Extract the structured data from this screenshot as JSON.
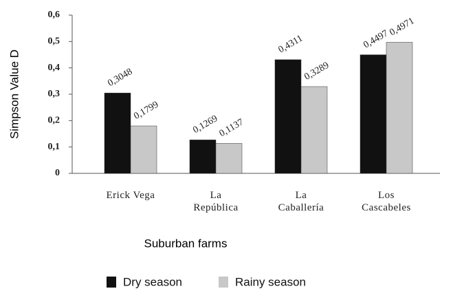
{
  "chart_data": {
    "type": "bar",
    "xlabel": "Suburban farms",
    "ylabel": "Simpson Value D",
    "categories": [
      "Erick Vega",
      "La\nRepública",
      "La\nCaballería",
      "Los\nCascabeles"
    ],
    "series": [
      {
        "name": "Dry season",
        "color": "#111111",
        "values": [
          0.3048,
          0.1269,
          0.4311,
          0.4497
        ],
        "value_labels": [
          "0,3048",
          "0,1269",
          "0,4311",
          "0,4497"
        ]
      },
      {
        "name": "Rainy season",
        "color": "#c8c8c8",
        "values": [
          0.1799,
          0.1137,
          0.3289,
          0.4971
        ],
        "value_labels": [
          "0,1799",
          "0,1137",
          "0,3289",
          "0,4971"
        ]
      }
    ],
    "ylim": [
      0,
      0.6
    ],
    "yticks": [
      0,
      {
        "value": 0.1,
        "label": "0,1"
      },
      {
        "value": 0.2,
        "label": "0,2"
      },
      {
        "value": 0.3,
        "label": "0,3"
      },
      {
        "value": 0.4,
        "label": "0,4"
      },
      {
        "value": 0.5,
        "label": "0,5"
      },
      {
        "value": 0.6,
        "label": "0,6"
      }
    ],
    "legend": "bottom"
  }
}
